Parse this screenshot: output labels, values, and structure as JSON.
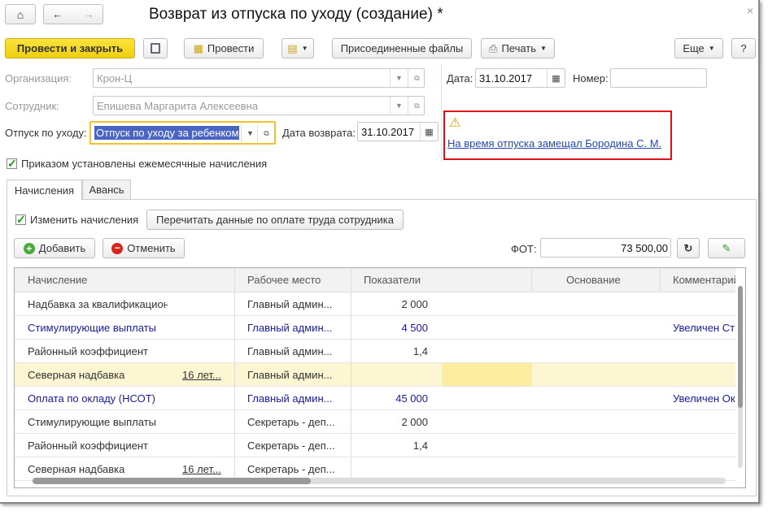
{
  "window": {
    "title": "Возврат из отпуска по уходу (создание) *",
    "close": "×"
  },
  "nav": {
    "home": "home-icon",
    "back": "←",
    "forward": "→"
  },
  "toolbar": {
    "post_close": "Провести и закрыть",
    "post": "Провести",
    "files": "Присоединенные файлы",
    "print": "Печать",
    "more": "Еще",
    "help": "?"
  },
  "form": {
    "org_label": "Организация:",
    "org_value": "Крон-Ц",
    "emp_label": "Сотрудник:",
    "emp_value": "Епишева Маргарита Алексеевна",
    "leave_label": "Отпуск по уходу:",
    "leave_value": "Отпуск по уходу за ребенком",
    "return_label": "Дата возврата:",
    "return_value": "31.10.2017",
    "date_label": "Дата:",
    "date_value": "31.10.2017",
    "num_label": "Номер:",
    "num_value": "",
    "monthly_label": "Приказом установлены ежемесячные начисления",
    "monthly_checked": true,
    "warning_link": "На время отпуска замещал Бородина С. М."
  },
  "tabs": [
    {
      "label": "Начисления",
      "active": true
    },
    {
      "label": "Авансь"
    }
  ],
  "accruals": {
    "change_label": "Изменить начисления",
    "change_checked": true,
    "reread_button": "Перечитать данные по оплате труда сотрудника",
    "add_button": "Добавить",
    "cancel_button": "Отменить",
    "fot_label": "ФОТ:",
    "fot_value": "73 500,00",
    "columns": [
      "Начисление",
      "Рабочее место",
      "Показатели",
      "Основание",
      "Комментарий"
    ],
    "rows": [
      {
        "name": "Надбавка за квалификационную кате...",
        "extra": "",
        "place": "Главный админ...",
        "value": "2 000",
        "comment": "",
        "blue": false
      },
      {
        "name": "Стимулирующие выплаты",
        "extra": "",
        "place": "Главный админ...",
        "value": "4 500",
        "comment": "Увеличен  Ст",
        "blue": true
      },
      {
        "name": "Районный коэффициент",
        "extra": "",
        "place": "Главный админ...",
        "value": "1,4",
        "comment": "",
        "blue": false
      },
      {
        "name": "Северная надбавка",
        "extra": "16 лет...",
        "place": "Главный админ...",
        "value": "",
        "comment": "",
        "blue": false,
        "selected": true
      },
      {
        "name": "Оплата по окладу (НСОТ)",
        "extra": "",
        "place": "Главный админ...",
        "value": "45 000",
        "comment": "Увеличен Ок",
        "blue": true
      },
      {
        "name": "Стимулирующие выплаты",
        "extra": "",
        "place": "Секретарь - деп...",
        "value": "2 000",
        "comment": "",
        "blue": false
      },
      {
        "name": "Районный коэффициент",
        "extra": "",
        "place": "Секретарь - деп...",
        "value": "1,4",
        "comment": "",
        "blue": false
      },
      {
        "name": "Северная надбавка",
        "extra": "16 лет...",
        "place": "Секретарь - деп...",
        "value": "",
        "comment": "",
        "blue": false
      }
    ]
  }
}
